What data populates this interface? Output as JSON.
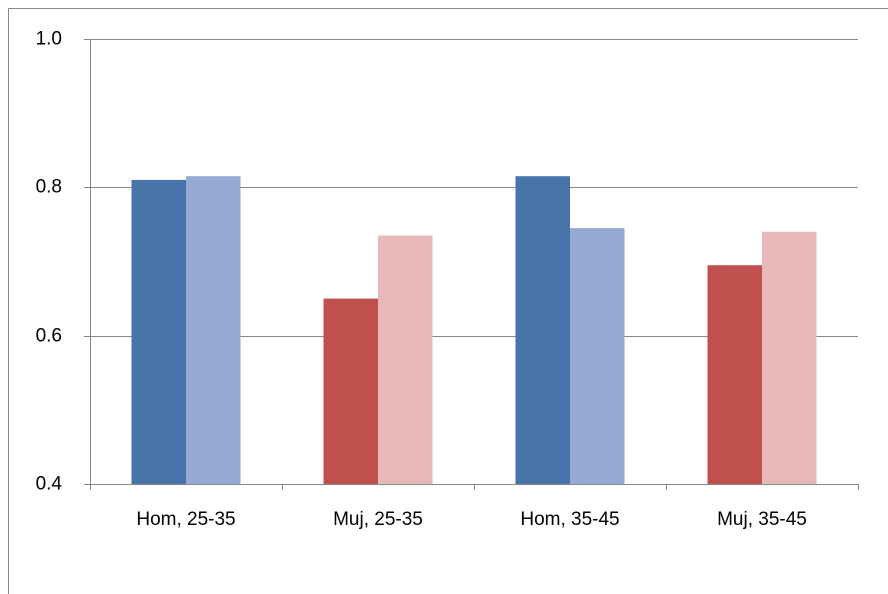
{
  "chart_data": {
    "type": "bar",
    "categories": [
      "Hom, 25-35",
      "Muj, 25-35",
      "Hom, 35-45",
      "Muj, 35-45"
    ],
    "series": [
      {
        "colors": [
          "#4673a8",
          "#c0504d",
          "#4673a8",
          "#c0504d"
        ],
        "values": [
          0.81,
          0.65,
          0.815,
          0.695
        ]
      },
      {
        "colors": [
          "#95aad3",
          "#e6b8b7",
          "#95aad3",
          "#e6b8b7"
        ],
        "values": [
          0.815,
          0.735,
          0.745,
          0.74
        ]
      }
    ],
    "ylim": [
      0.4,
      1
    ],
    "yticks": [
      {
        "value": 0.4,
        "label": "0.4"
      },
      0.6,
      0.8,
      {
        "value": 1,
        "label": "1.0"
      }
    ],
    "grid": true
  }
}
